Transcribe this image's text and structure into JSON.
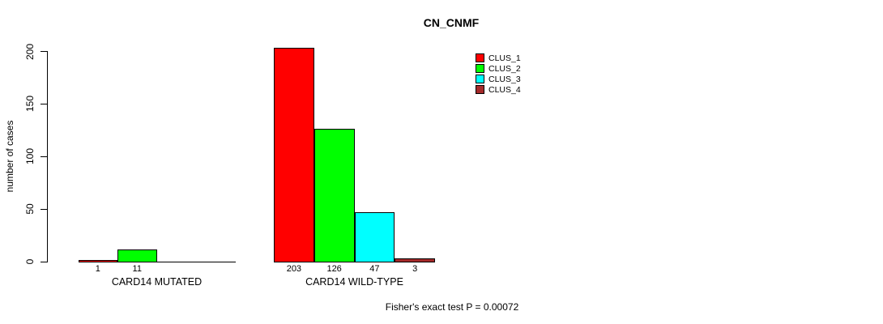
{
  "chart_data": {
    "type": "bar",
    "title": "CN_CNMF",
    "ylabel": "number of cases",
    "xlabel": "",
    "ylim": [
      0,
      200
    ],
    "yticks": [
      0,
      50,
      100,
      150,
      200
    ],
    "grid": false,
    "legend_position": "top-right",
    "categories": [
      "CARD14 MUTATED",
      "CARD14 WILD-TYPE"
    ],
    "series": [
      {
        "name": "CLUS_1",
        "color": "#FF0000",
        "values": [
          1,
          203
        ]
      },
      {
        "name": "CLUS_2",
        "color": "#00FF00",
        "values": [
          11,
          126
        ]
      },
      {
        "name": "CLUS_3",
        "color": "#00FFFF",
        "values": [
          0,
          47
        ]
      },
      {
        "name": "CLUS_4",
        "color": "#A52A2A",
        "values": [
          0,
          3
        ]
      }
    ],
    "bar_value_labels": [
      [
        "1",
        "11",
        "",
        ""
      ],
      [
        "203",
        "126",
        "47",
        "3"
      ]
    ],
    "annotation": "Fisher's exact test P = 0.00072"
  }
}
